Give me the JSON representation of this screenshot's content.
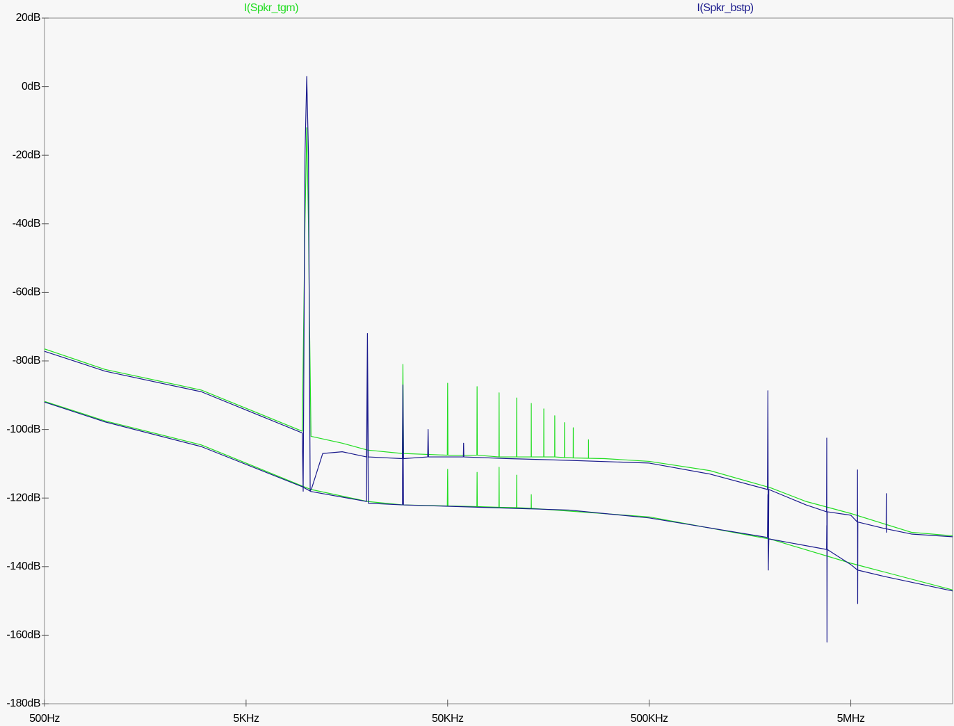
{
  "chart_data": {
    "type": "line",
    "xscale": "log",
    "xlim": [
      500,
      16000000
    ],
    "ylim": [
      -180,
      20
    ],
    "xticks": [
      {
        "value": 500,
        "label": "500Hz"
      },
      {
        "value": 5000,
        "label": "5KHz"
      },
      {
        "value": 50000,
        "label": "50KHz"
      },
      {
        "value": 500000,
        "label": "500KHz"
      },
      {
        "value": 5000000,
        "label": "5MHz"
      }
    ],
    "yticks": [
      {
        "value": 20,
        "label": "20dB"
      },
      {
        "value": 0,
        "label": "0dB"
      },
      {
        "value": -20,
        "label": "-20dB"
      },
      {
        "value": -40,
        "label": "-40dB"
      },
      {
        "value": -60,
        "label": "-60dB"
      },
      {
        "value": -80,
        "label": "-80dB"
      },
      {
        "value": -100,
        "label": "-100dB"
      },
      {
        "value": -120,
        "label": "-120dB"
      },
      {
        "value": -140,
        "label": "-140dB"
      },
      {
        "value": -160,
        "label": "-160dB"
      },
      {
        "value": -180,
        "label": "-180dB"
      }
    ],
    "series": [
      {
        "name": "I(Spkr_tgm)",
        "color": "#22dd22",
        "x": [
          500,
          1000,
          3000,
          9500,
          9800,
          10000,
          10200,
          10300,
          10500,
          15000,
          20000,
          29800,
          30000,
          30200,
          49800,
          50000,
          50200,
          69800,
          70000,
          70200,
          89800,
          90000,
          90200,
          109800,
          110000,
          110200,
          129800,
          130000,
          130200,
          149800,
          150000,
          150200,
          169800,
          170000,
          170200,
          189800,
          190000,
          190200,
          209800,
          210000,
          210200,
          249800,
          250000,
          250200,
          300000,
          500000,
          1000000,
          2000000,
          3000000,
          5000000,
          10000000,
          16000000,
          null,
          500,
          1000,
          3000,
          9500,
          10500,
          20000,
          30000,
          49800,
          50000,
          50200,
          69800,
          70000,
          70200,
          89800,
          90000,
          90200,
          109800,
          110000,
          110200,
          129800,
          130000,
          130200,
          500000,
          2000000,
          5000000,
          16000000
        ],
        "values": [
          -76.5,
          -82.5,
          -88.5,
          -100.5,
          -40,
          -12,
          -40,
          -65,
          -102,
          -104,
          -106,
          -107,
          -81,
          -107,
          -107.5,
          -86.5,
          -107.5,
          -107.5,
          -87.5,
          -107.5,
          -108,
          -89.3,
          -108,
          -108,
          -90.8,
          -108,
          -108,
          -92.4,
          -108,
          -108,
          -94,
          -108,
          -108,
          -96,
          -108,
          -108.2,
          -98,
          -108.2,
          -108.3,
          -99.5,
          -108.3,
          -108.4,
          -103,
          -108.4,
          -108.5,
          -109.3,
          -112,
          -117,
          -121,
          -124.5,
          -130,
          -131,
          null,
          -91.8,
          -97.5,
          -104.5,
          -116.5,
          -117.5,
          -121,
          -122,
          -122.3,
          -111.6,
          -122.3,
          -122.5,
          -112.5,
          -122.5,
          -122.7,
          -111,
          -122.7,
          -122.8,
          -113.3,
          -122.8,
          -123,
          -119,
          -123,
          -125.5,
          -132,
          -139,
          -146.8
        ]
      },
      {
        "name": "I(Spkr_bstp)",
        "color": "#1a1a8c",
        "x": [
          500,
          1000,
          3000,
          9500,
          9600,
          9800,
          10000,
          10200,
          10400,
          10600,
          12000,
          15000,
          19800,
          20000,
          20200,
          29800,
          30000,
          30200,
          39800,
          40000,
          40200,
          59800,
          60000,
          60200,
          100000,
          200000,
          500000,
          1000000,
          1930000,
          1940000,
          1950000,
          1960000,
          3000000,
          3790000,
          3800000,
          3810000,
          3820000,
          5000000,
          5390000,
          5400000,
          5410000,
          5420000,
          7490000,
          7500000,
          7510000,
          7520000,
          10000000,
          16000000,
          null,
          500,
          1000,
          3000,
          9500,
          10500,
          19800,
          20000,
          20200,
          29800,
          30000,
          30200,
          50000,
          200000,
          500000,
          1930000,
          1940000,
          1950000,
          1960000,
          3790000,
          3800000,
          3810000,
          3820000,
          5000000,
          5400000,
          7500000,
          16000000
        ],
        "values": [
          -77.2,
          -83,
          -89,
          -101,
          -118,
          -20,
          3,
          -20,
          -118,
          -117,
          -107,
          -106.5,
          -108,
          -72,
          -108,
          -108.5,
          -87,
          -108.5,
          -108,
          -100,
          -108,
          -108,
          -104,
          -108,
          -108.5,
          -109,
          -109.8,
          -113,
          -117.5,
          -88.7,
          -141,
          -117.5,
          -122,
          -124,
          -102.5,
          -162,
          -124,
          -125,
          -127,
          -111.8,
          -150.8,
          -127,
          -129,
          -118.7,
          -130,
          -129,
          -130.5,
          -131.3,
          null,
          -92,
          -97.8,
          -105,
          -116.7,
          -118.1,
          -121,
          -75,
          -121.5,
          -122,
          -95,
          -122,
          -122.4,
          -123.5,
          -125.8,
          -131.5,
          -119,
          -140,
          -131.9,
          -135,
          -128,
          -142,
          -135,
          -139.4,
          -141,
          -143,
          -147.1
        ]
      }
    ]
  }
}
